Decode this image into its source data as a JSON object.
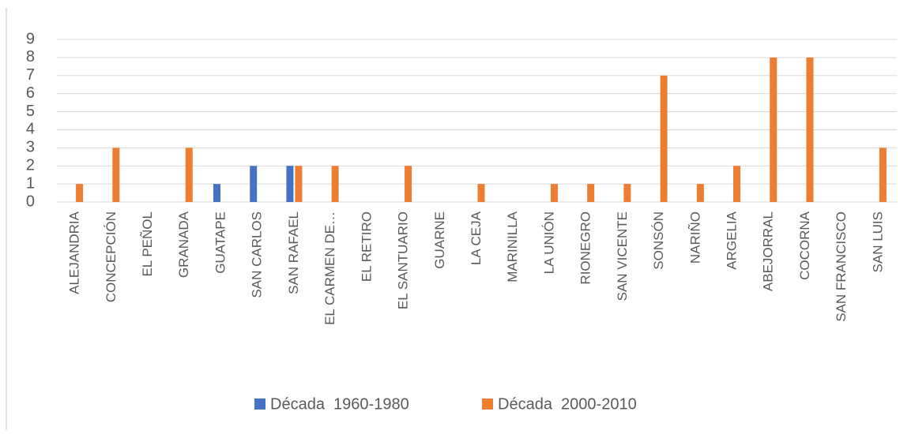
{
  "chart_data": {
    "type": "bar",
    "categories": [
      "ALEJANDRIA",
      "CONCEPCIÓN",
      "EL PEÑOL",
      "GRANADA",
      "GUATAPE",
      "SAN CARLOS",
      "SAN RAFAEL",
      "EL CARMEN DE…",
      "EL RETIRO",
      "EL SANTUARIO",
      "GUARNE",
      "LA CEJA",
      "MARINILLA",
      "LA UNIÓN",
      "RIONEGRO",
      "SAN VICENTE",
      "SONSÓN",
      "NARIÑO",
      "ARGELIA",
      "ABEJORRAL",
      "COCORNA",
      "SAN FRANCISCO",
      "SAN LUIS"
    ],
    "series": [
      {
        "name": "Década  1960-1980",
        "color": "#4472c4",
        "values": [
          0,
          0,
          0,
          0,
          1,
          2,
          2,
          0,
          0,
          0,
          0,
          0,
          0,
          0,
          0,
          0,
          0,
          0,
          0,
          0,
          0,
          0,
          0
        ]
      },
      {
        "name": "Década  2000-2010",
        "color": "#ed7d31",
        "values": [
          1,
          3,
          0,
          3,
          0,
          0,
          2,
          2,
          0,
          2,
          0,
          1,
          0,
          1,
          1,
          1,
          7,
          1,
          2,
          8,
          8,
          0,
          3
        ]
      }
    ],
    "ylim": [
      0,
      9
    ],
    "yticks": [
      0,
      1,
      2,
      3,
      4,
      5,
      6,
      7,
      8,
      9
    ],
    "grid": true,
    "legend": "bottom"
  }
}
